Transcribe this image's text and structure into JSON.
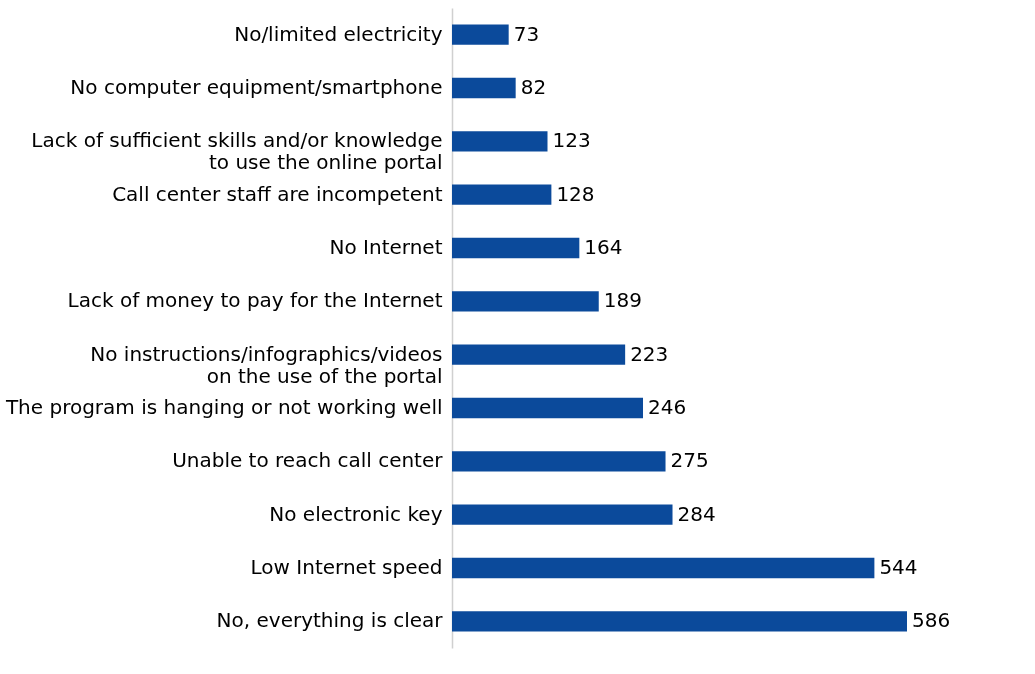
{
  "chart_data": {
    "type": "bar",
    "orientation": "horizontal",
    "data_labels": true,
    "categories": [
      "No/limited electricity",
      "No computer equipment/smartphone",
      "Lack of sufficient skills and/or knowledge\nto use the online portal",
      "Call center staff are incompetent",
      "No Internet",
      "Lack of money to pay for the Internet",
      "No instructions/infographics/videos\non the use of the portal",
      "The program is hanging or not working well",
      "Unable to reach call center",
      "No electronic key",
      "Low Internet speed",
      "No, everything is clear"
    ],
    "values": [
      73,
      82,
      123,
      128,
      164,
      189,
      223,
      246,
      275,
      284,
      544,
      586
    ],
    "color": "#0b4a9b"
  }
}
